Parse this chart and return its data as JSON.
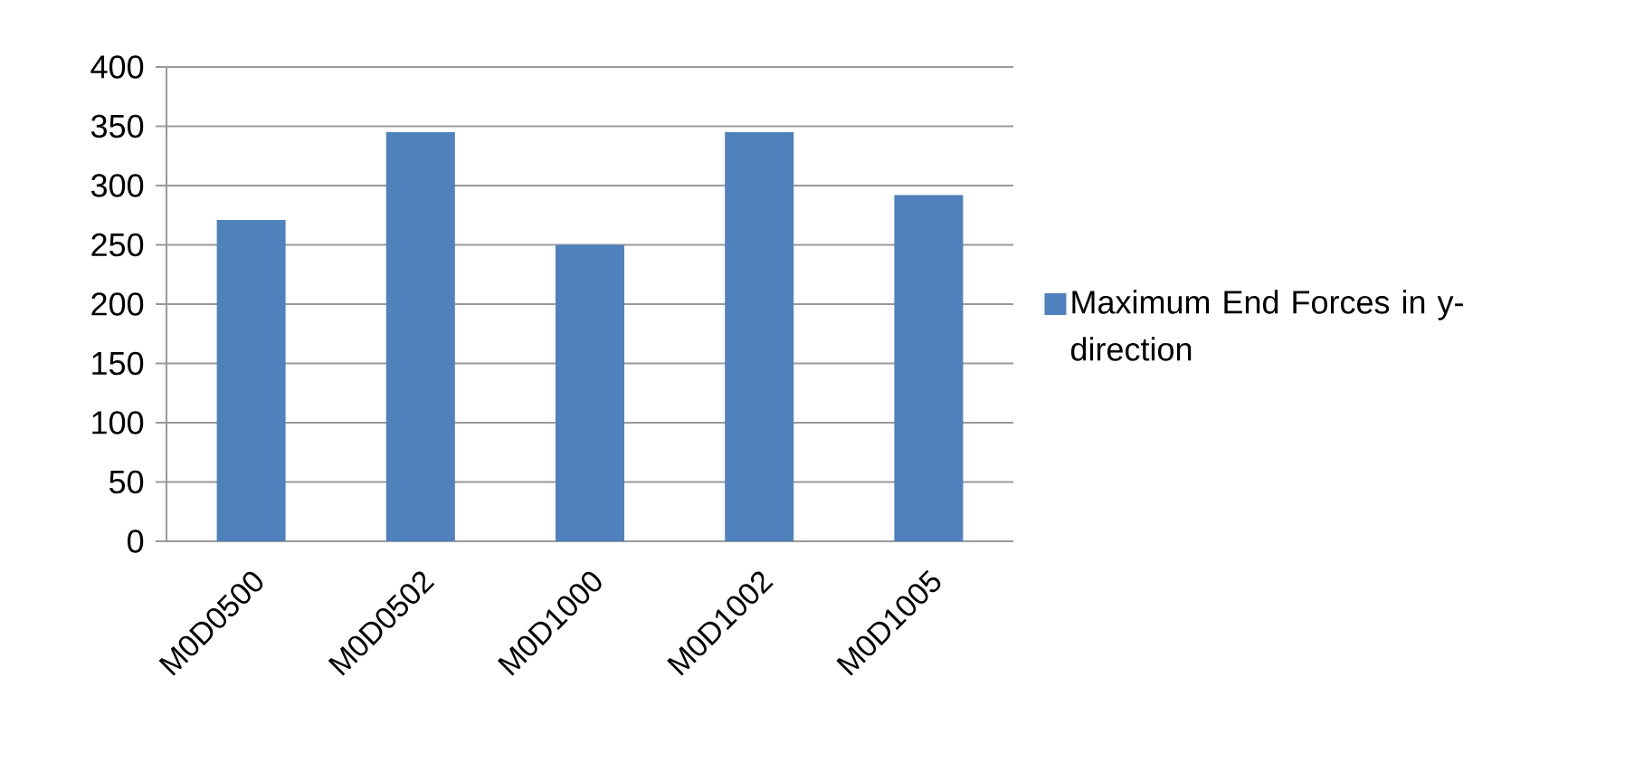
{
  "chart_data": {
    "type": "bar",
    "categories": [
      "M0D0500",
      "M0D0502",
      "M0D1000",
      "M0D1002",
      "M0D1005"
    ],
    "series": [
      {
        "name": "Maximum End Forces in y- direction",
        "color": "#4f81bd",
        "values": [
          271,
          345,
          250,
          345,
          292
        ]
      }
    ],
    "ylim": [
      0,
      400
    ],
    "yticks": [
      0,
      50,
      100,
      150,
      200,
      250,
      300,
      350,
      400
    ],
    "grid": "y",
    "legend": "right"
  }
}
